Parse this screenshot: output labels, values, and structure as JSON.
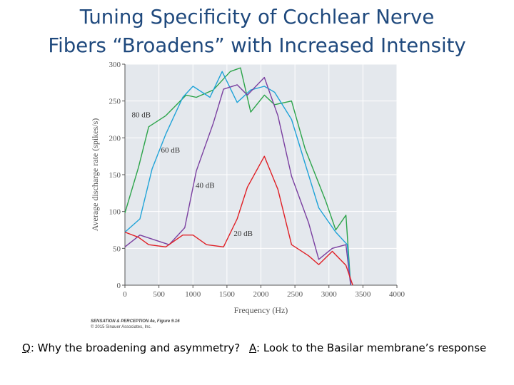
{
  "slide": {
    "title_line1": "Tuning Specificity of Cochlear Nerve",
    "title_line2": "Fibers “Broadens” with Increased Intensity",
    "question_prefix": "Q",
    "question_text": ": Why the broadening and asymmetry?",
    "answer_prefix": "A",
    "answer_text": ": Look to the Basilar membrane’s response",
    "caption_line1": "SENSATION & PERCEPTION 4e, Figure 9.16",
    "caption_line2": "© 2015 Sinauer Associates, Inc."
  },
  "chart_data": {
    "type": "line",
    "title": "",
    "xlabel": "Frequency (Hz)",
    "ylabel": "Average discharge rate (spikes/s)",
    "xlim": [
      0,
      4000
    ],
    "ylim": [
      0,
      300
    ],
    "xticks": [
      0,
      500,
      1000,
      1500,
      2000,
      2500,
      3000,
      3500,
      4000
    ],
    "yticks": [
      0,
      50,
      100,
      150,
      200,
      250,
      300
    ],
    "grid": true,
    "background": "#e4e8ed",
    "series": [
      {
        "name": "80 dB",
        "color": "#2ca44a",
        "label_at": [
          100,
          228
        ],
        "points": [
          [
            0,
            98
          ],
          [
            200,
            160
          ],
          [
            350,
            215
          ],
          [
            600,
            230
          ],
          [
            900,
            258
          ],
          [
            1050,
            255
          ],
          [
            1300,
            265
          ],
          [
            1550,
            290
          ],
          [
            1700,
            295
          ],
          [
            1850,
            235
          ],
          [
            2050,
            258
          ],
          [
            2200,
            245
          ],
          [
            2450,
            250
          ],
          [
            2650,
            185
          ],
          [
            2950,
            115
          ],
          [
            3100,
            75
          ],
          [
            3250,
            95
          ],
          [
            3320,
            0
          ]
        ]
      },
      {
        "name": "60 dB",
        "color": "#1fa3d8",
        "label_at": [
          530,
          180
        ],
        "points": [
          [
            0,
            72
          ],
          [
            220,
            90
          ],
          [
            400,
            158
          ],
          [
            600,
            205
          ],
          [
            850,
            255
          ],
          [
            1000,
            270
          ],
          [
            1250,
            255
          ],
          [
            1430,
            290
          ],
          [
            1650,
            248
          ],
          [
            1850,
            265
          ],
          [
            2050,
            270
          ],
          [
            2200,
            262
          ],
          [
            2450,
            225
          ],
          [
            2650,
            165
          ],
          [
            2850,
            105
          ],
          [
            3100,
            72
          ],
          [
            3270,
            55
          ],
          [
            3320,
            0
          ]
        ]
      },
      {
        "name": "40 dB",
        "color": "#7a3fa0",
        "label_at": [
          1040,
          132
        ],
        "points": [
          [
            0,
            52
          ],
          [
            220,
            68
          ],
          [
            650,
            55
          ],
          [
            880,
            78
          ],
          [
            1050,
            155
          ],
          [
            1300,
            220
          ],
          [
            1450,
            266
          ],
          [
            1650,
            272
          ],
          [
            1800,
            258
          ],
          [
            2050,
            282
          ],
          [
            2250,
            230
          ],
          [
            2450,
            148
          ],
          [
            2700,
            85
          ],
          [
            2850,
            35
          ],
          [
            3050,
            50
          ],
          [
            3250,
            55
          ],
          [
            3320,
            0
          ]
        ]
      },
      {
        "name": "20 dB",
        "color": "#e02026",
        "label_at": [
          1600,
          67
        ],
        "points": [
          [
            0,
            72
          ],
          [
            200,
            65
          ],
          [
            350,
            55
          ],
          [
            600,
            52
          ],
          [
            850,
            68
          ],
          [
            1000,
            68
          ],
          [
            1200,
            55
          ],
          [
            1450,
            52
          ],
          [
            1650,
            90
          ],
          [
            1800,
            133
          ],
          [
            2050,
            175
          ],
          [
            2250,
            130
          ],
          [
            2450,
            55
          ],
          [
            2700,
            40
          ],
          [
            2850,
            28
          ],
          [
            3050,
            46
          ],
          [
            3250,
            27
          ],
          [
            3350,
            0
          ]
        ]
      }
    ]
  }
}
